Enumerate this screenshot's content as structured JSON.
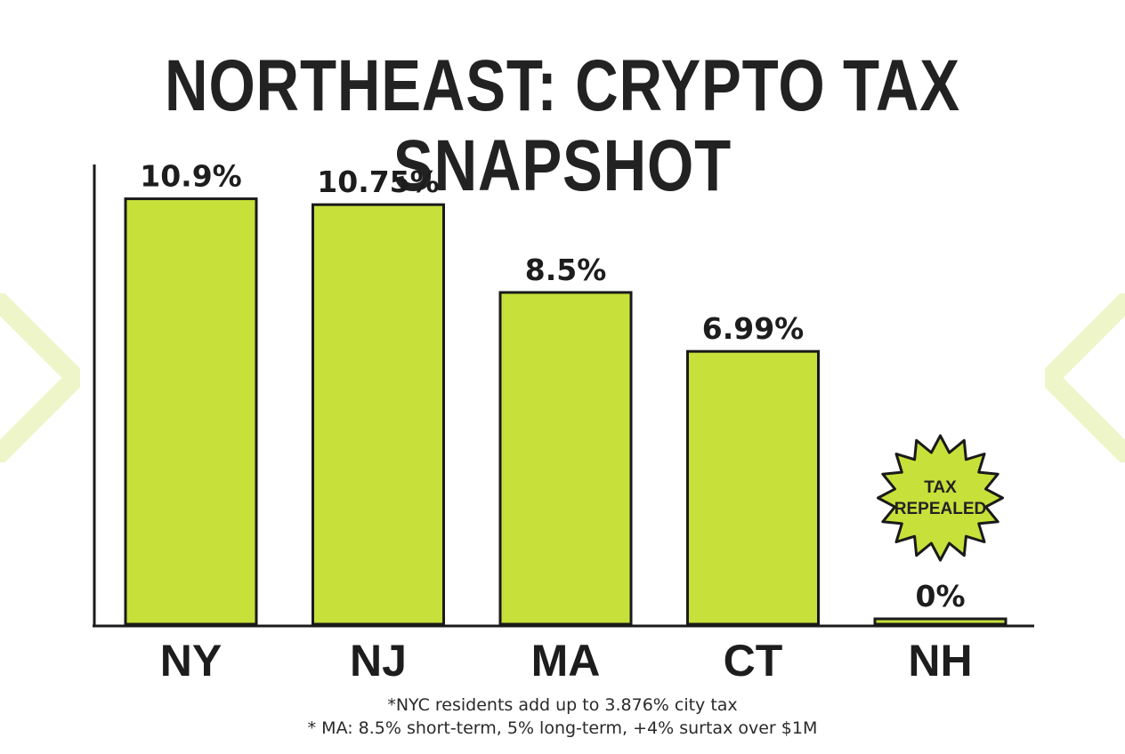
{
  "colors": {
    "bar_fill": "#c8e03a",
    "bar_stroke": "#1a1a1a",
    "decor": "#eef5c8",
    "badge_fill": "#c8e03a",
    "text": "#1d1d1d"
  },
  "header": {
    "title": "NORTHEAST: CRYPTO TAX SNAPSHOT"
  },
  "chart_data": {
    "type": "bar",
    "title": "NORTHEAST: CRYPTO TAX SNAPSHOT",
    "categories": [
      "NY",
      "NJ",
      "MA",
      "CT",
      "NH"
    ],
    "values": [
      10.9,
      10.75,
      8.5,
      6.99,
      0
    ],
    "value_labels": [
      "10.9%",
      "10.75%",
      "8.5%",
      "6.99%",
      "0%"
    ],
    "xlabel": "",
    "ylabel": "",
    "ylim": [
      0,
      12
    ],
    "grid": false,
    "annotations": [
      {
        "category": "NH",
        "text_lines": [
          "TAX",
          "REPEALED"
        ],
        "shape": "starburst-badge"
      }
    ]
  },
  "footnotes": [
    "*NYC residents add up to 3.876% city tax",
    "* MA: 8.5% short-term, 5% long-term, +4% surtax over $1M"
  ]
}
